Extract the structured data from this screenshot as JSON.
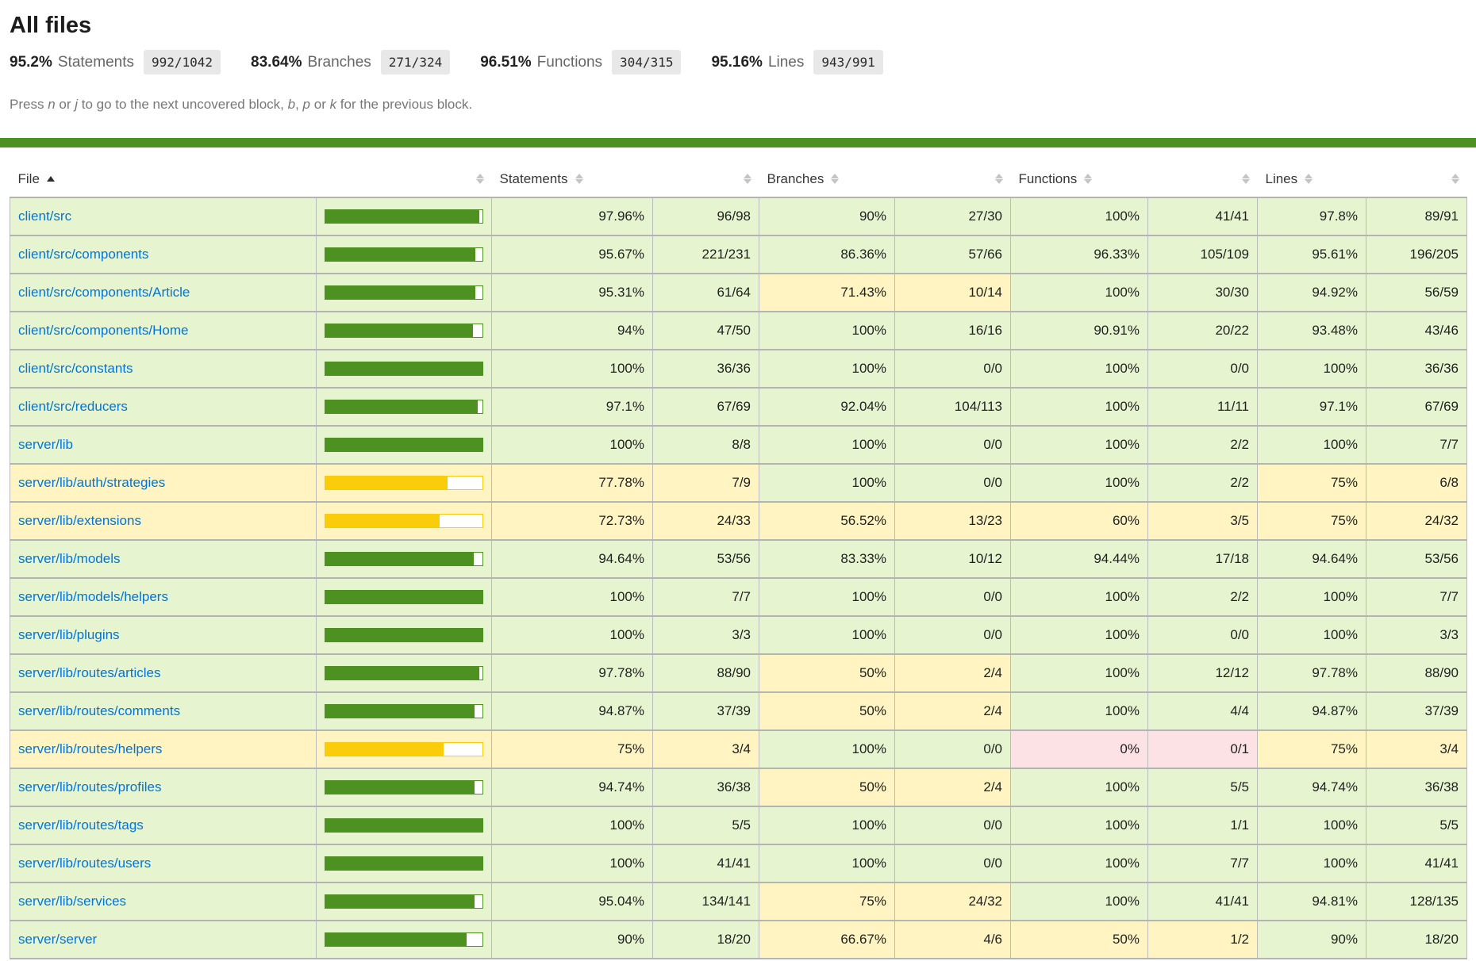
{
  "page": {
    "title": "All files"
  },
  "summary": [
    {
      "pct": "95.2%",
      "label": "Statements",
      "fraction": "992/1042"
    },
    {
      "pct": "83.64%",
      "label": "Branches",
      "fraction": "271/324"
    },
    {
      "pct": "96.51%",
      "label": "Functions",
      "fraction": "304/315"
    },
    {
      "pct": "95.16%",
      "label": "Lines",
      "fraction": "943/991"
    }
  ],
  "keyboard_hint_segments": [
    {
      "text": "Press "
    },
    {
      "text": "n",
      "em": true
    },
    {
      "text": " or "
    },
    {
      "text": "j",
      "em": true
    },
    {
      "text": " to go to the next uncovered block, "
    },
    {
      "text": "b",
      "em": true
    },
    {
      "text": ", "
    },
    {
      "text": "p",
      "em": true
    },
    {
      "text": " or "
    },
    {
      "text": "k",
      "em": true
    },
    {
      "text": " for the previous block."
    }
  ],
  "thresholds": {
    "medium": 50,
    "high": 80
  },
  "colors": {
    "status_line": "#4d9221",
    "high_bg": "#e6f5d0",
    "medium_bg": "#fff4c2",
    "low_bg": "#fce1e5",
    "high_fill": "#4d9221",
    "medium_fill": "#f9cd0a",
    "low_fill": "#c21f39",
    "link": "#0074d9",
    "fraction_bg": "#e8e8e8"
  },
  "table": {
    "columns": [
      {
        "label": "File",
        "key": "file",
        "sorted": "asc"
      },
      {
        "label": "",
        "key": "pic"
      },
      {
        "label": "Statements",
        "key": "statements_pct"
      },
      {
        "label": "",
        "key": "statements_raw"
      },
      {
        "label": "Branches",
        "key": "branches_pct"
      },
      {
        "label": "",
        "key": "branches_raw"
      },
      {
        "label": "Functions",
        "key": "functions_pct"
      },
      {
        "label": "",
        "key": "functions_raw"
      },
      {
        "label": "Lines",
        "key": "lines_pct"
      },
      {
        "label": "",
        "key": "lines_raw"
      }
    ],
    "rows": [
      {
        "file": "client/src",
        "statements": {
          "pct": "97.96%",
          "ratio": "96/98"
        },
        "branches": {
          "pct": "90%",
          "ratio": "27/30"
        },
        "functions": {
          "pct": "100%",
          "ratio": "41/41"
        },
        "lines": {
          "pct": "97.8%",
          "ratio": "89/91"
        }
      },
      {
        "file": "client/src/components",
        "statements": {
          "pct": "95.67%",
          "ratio": "221/231"
        },
        "branches": {
          "pct": "86.36%",
          "ratio": "57/66"
        },
        "functions": {
          "pct": "96.33%",
          "ratio": "105/109"
        },
        "lines": {
          "pct": "95.61%",
          "ratio": "196/205"
        }
      },
      {
        "file": "client/src/components/Article",
        "statements": {
          "pct": "95.31%",
          "ratio": "61/64"
        },
        "branches": {
          "pct": "71.43%",
          "ratio": "10/14"
        },
        "functions": {
          "pct": "100%",
          "ratio": "30/30"
        },
        "lines": {
          "pct": "94.92%",
          "ratio": "56/59"
        }
      },
      {
        "file": "client/src/components/Home",
        "statements": {
          "pct": "94%",
          "ratio": "47/50"
        },
        "branches": {
          "pct": "100%",
          "ratio": "16/16"
        },
        "functions": {
          "pct": "90.91%",
          "ratio": "20/22"
        },
        "lines": {
          "pct": "93.48%",
          "ratio": "43/46"
        }
      },
      {
        "file": "client/src/constants",
        "statements": {
          "pct": "100%",
          "ratio": "36/36"
        },
        "branches": {
          "pct": "100%",
          "ratio": "0/0"
        },
        "functions": {
          "pct": "100%",
          "ratio": "0/0"
        },
        "lines": {
          "pct": "100%",
          "ratio": "36/36"
        }
      },
      {
        "file": "client/src/reducers",
        "statements": {
          "pct": "97.1%",
          "ratio": "67/69"
        },
        "branches": {
          "pct": "92.04%",
          "ratio": "104/113"
        },
        "functions": {
          "pct": "100%",
          "ratio": "11/11"
        },
        "lines": {
          "pct": "97.1%",
          "ratio": "67/69"
        }
      },
      {
        "file": "server/lib",
        "statements": {
          "pct": "100%",
          "ratio": "8/8"
        },
        "branches": {
          "pct": "100%",
          "ratio": "0/0"
        },
        "functions": {
          "pct": "100%",
          "ratio": "2/2"
        },
        "lines": {
          "pct": "100%",
          "ratio": "7/7"
        }
      },
      {
        "file": "server/lib/auth/strategies",
        "statements": {
          "pct": "77.78%",
          "ratio": "7/9"
        },
        "branches": {
          "pct": "100%",
          "ratio": "0/0"
        },
        "functions": {
          "pct": "100%",
          "ratio": "2/2"
        },
        "lines": {
          "pct": "75%",
          "ratio": "6/8"
        }
      },
      {
        "file": "server/lib/extensions",
        "statements": {
          "pct": "72.73%",
          "ratio": "24/33"
        },
        "branches": {
          "pct": "56.52%",
          "ratio": "13/23"
        },
        "functions": {
          "pct": "60%",
          "ratio": "3/5"
        },
        "lines": {
          "pct": "75%",
          "ratio": "24/32"
        }
      },
      {
        "file": "server/lib/models",
        "statements": {
          "pct": "94.64%",
          "ratio": "53/56"
        },
        "branches": {
          "pct": "83.33%",
          "ratio": "10/12"
        },
        "functions": {
          "pct": "94.44%",
          "ratio": "17/18"
        },
        "lines": {
          "pct": "94.64%",
          "ratio": "53/56"
        }
      },
      {
        "file": "server/lib/models/helpers",
        "statements": {
          "pct": "100%",
          "ratio": "7/7"
        },
        "branches": {
          "pct": "100%",
          "ratio": "0/0"
        },
        "functions": {
          "pct": "100%",
          "ratio": "2/2"
        },
        "lines": {
          "pct": "100%",
          "ratio": "7/7"
        }
      },
      {
        "file": "server/lib/plugins",
        "statements": {
          "pct": "100%",
          "ratio": "3/3"
        },
        "branches": {
          "pct": "100%",
          "ratio": "0/0"
        },
        "functions": {
          "pct": "100%",
          "ratio": "0/0"
        },
        "lines": {
          "pct": "100%",
          "ratio": "3/3"
        }
      },
      {
        "file": "server/lib/routes/articles",
        "statements": {
          "pct": "97.78%",
          "ratio": "88/90"
        },
        "branches": {
          "pct": "50%",
          "ratio": "2/4"
        },
        "functions": {
          "pct": "100%",
          "ratio": "12/12"
        },
        "lines": {
          "pct": "97.78%",
          "ratio": "88/90"
        }
      },
      {
        "file": "server/lib/routes/comments",
        "statements": {
          "pct": "94.87%",
          "ratio": "37/39"
        },
        "branches": {
          "pct": "50%",
          "ratio": "2/4"
        },
        "functions": {
          "pct": "100%",
          "ratio": "4/4"
        },
        "lines": {
          "pct": "94.87%",
          "ratio": "37/39"
        }
      },
      {
        "file": "server/lib/routes/helpers",
        "statements": {
          "pct": "75%",
          "ratio": "3/4"
        },
        "branches": {
          "pct": "100%",
          "ratio": "0/0"
        },
        "functions": {
          "pct": "0%",
          "ratio": "0/1"
        },
        "lines": {
          "pct": "75%",
          "ratio": "3/4"
        }
      },
      {
        "file": "server/lib/routes/profiles",
        "statements": {
          "pct": "94.74%",
          "ratio": "36/38"
        },
        "branches": {
          "pct": "50%",
          "ratio": "2/4"
        },
        "functions": {
          "pct": "100%",
          "ratio": "5/5"
        },
        "lines": {
          "pct": "94.74%",
          "ratio": "36/38"
        }
      },
      {
        "file": "server/lib/routes/tags",
        "statements": {
          "pct": "100%",
          "ratio": "5/5"
        },
        "branches": {
          "pct": "100%",
          "ratio": "0/0"
        },
        "functions": {
          "pct": "100%",
          "ratio": "1/1"
        },
        "lines": {
          "pct": "100%",
          "ratio": "5/5"
        }
      },
      {
        "file": "server/lib/routes/users",
        "statements": {
          "pct": "100%",
          "ratio": "41/41"
        },
        "branches": {
          "pct": "100%",
          "ratio": "0/0"
        },
        "functions": {
          "pct": "100%",
          "ratio": "7/7"
        },
        "lines": {
          "pct": "100%",
          "ratio": "41/41"
        }
      },
      {
        "file": "server/lib/services",
        "statements": {
          "pct": "95.04%",
          "ratio": "134/141"
        },
        "branches": {
          "pct": "75%",
          "ratio": "24/32"
        },
        "functions": {
          "pct": "100%",
          "ratio": "41/41"
        },
        "lines": {
          "pct": "94.81%",
          "ratio": "128/135"
        }
      },
      {
        "file": "server/server",
        "statements": {
          "pct": "90%",
          "ratio": "18/20"
        },
        "branches": {
          "pct": "66.67%",
          "ratio": "4/6"
        },
        "functions": {
          "pct": "50%",
          "ratio": "1/2"
        },
        "lines": {
          "pct": "90%",
          "ratio": "18/20"
        }
      }
    ]
  }
}
